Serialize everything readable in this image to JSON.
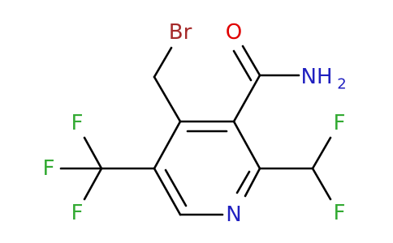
{
  "atoms": [
    {
      "label": "Br"
    },
    {
      "label": "O"
    },
    {
      "label": "NH",
      "subscript": "2"
    },
    {
      "label": "N"
    },
    {
      "label": "F"
    },
    {
      "label": "F"
    },
    {
      "label": "F"
    },
    {
      "label": "F"
    },
    {
      "label": "F"
    }
  ]
}
